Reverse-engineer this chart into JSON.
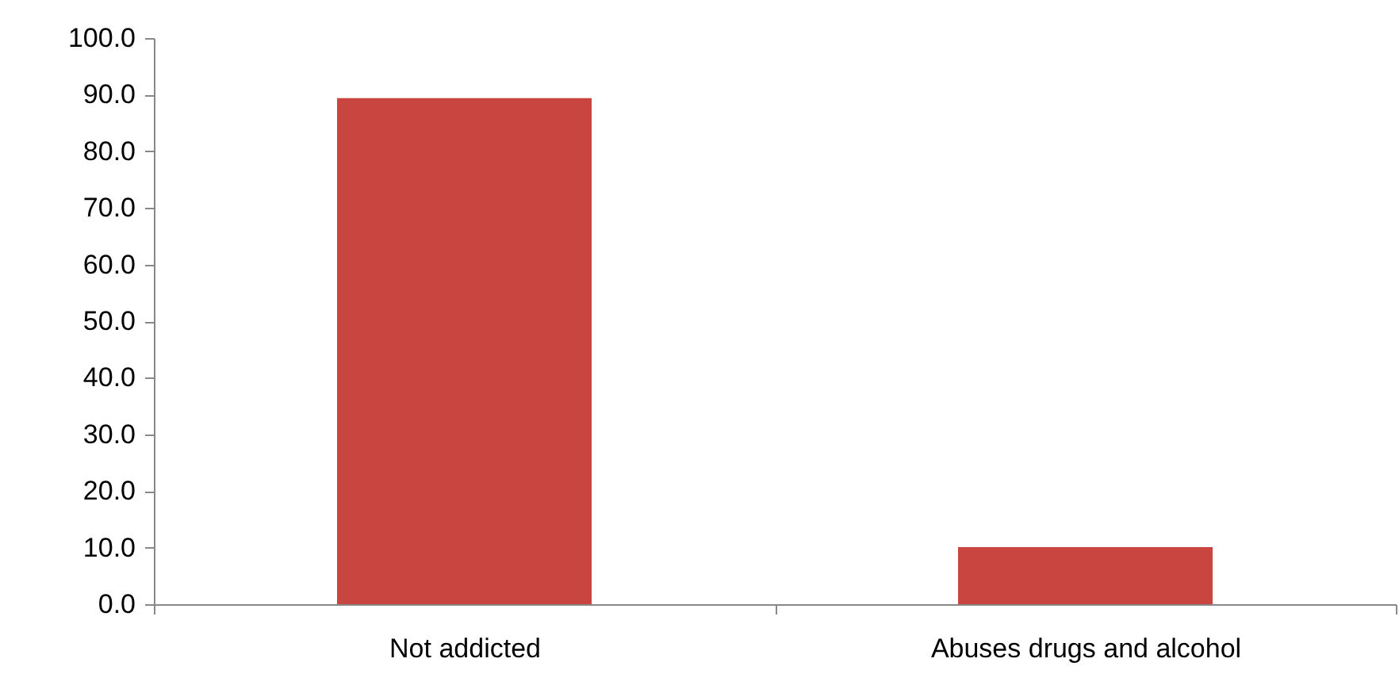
{
  "chart_data": {
    "type": "bar",
    "categories": [
      "Not addicted",
      "Abuses drugs and alcohol"
    ],
    "values": [
      89.4,
      10.1
    ],
    "color": "#c9453f",
    "ylim": [
      0,
      100
    ],
    "yticks": [
      {
        "value": 0,
        "label": "0.0"
      },
      {
        "value": 10,
        "label": "10.0"
      },
      {
        "value": 20,
        "label": "20.0"
      },
      {
        "value": 30,
        "label": "30.0"
      },
      {
        "value": 40,
        "label": "40.0"
      },
      {
        "value": 50,
        "label": "50.0"
      },
      {
        "value": 60,
        "label": "60.0"
      },
      {
        "value": 70,
        "label": "70.0"
      },
      {
        "value": 80,
        "label": "80.0"
      },
      {
        "value": 90,
        "label": "90.0"
      },
      {
        "value": 100,
        "label": "100.0"
      }
    ],
    "grid": false
  }
}
